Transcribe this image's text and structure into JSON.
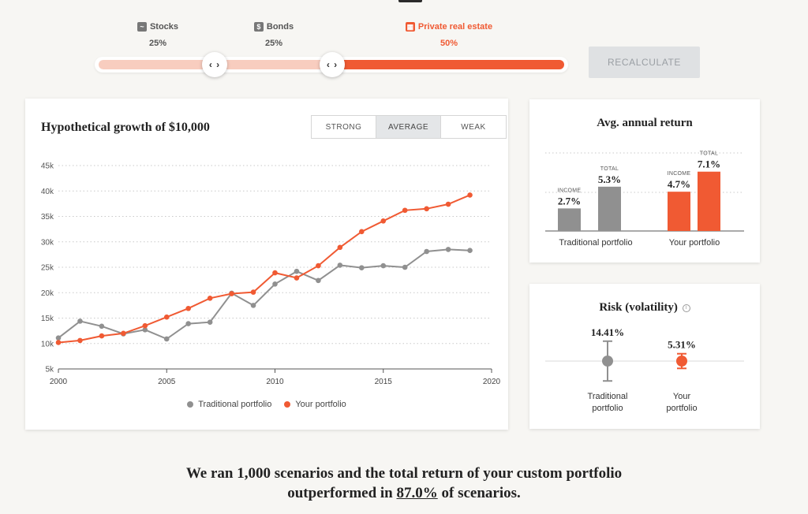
{
  "allocation": {
    "items": [
      {
        "name": "Stocks",
        "pct": "25%",
        "icon": "stocks-chart-icon"
      },
      {
        "name": "Bonds",
        "pct": "25%",
        "icon": "dollar-icon"
      },
      {
        "name": "Private real estate",
        "pct": "50%",
        "icon": "building-icon"
      }
    ],
    "handle_glyph": "‹ ›"
  },
  "recalculate_label": "RECALCULATE",
  "chart_card": {
    "title": "Hypothetical growth of $10,000",
    "tabs": [
      "STRONG",
      "AVERAGE",
      "WEAK"
    ],
    "active_tab": "AVERAGE"
  },
  "colors": {
    "traditional": "#909090",
    "yours": "#f05a33",
    "light_accent": "#f8cdbf"
  },
  "chart_data": {
    "type": "line",
    "title": "Hypothetical growth of $10,000",
    "xlabel": "",
    "ylabel": "",
    "xlim": [
      2000,
      2020
    ],
    "ylim": [
      5000,
      45000
    ],
    "x_ticks": [
      2000,
      2005,
      2010,
      2015,
      2020
    ],
    "y_ticks": [
      5000,
      10000,
      15000,
      20000,
      25000,
      30000,
      35000,
      40000,
      45000
    ],
    "y_tick_labels": [
      "5k",
      "10k",
      "15k",
      "20k",
      "25k",
      "30k",
      "35k",
      "40k",
      "45k"
    ],
    "grid": true,
    "legend_position": "bottom",
    "series": [
      {
        "name": "Traditional portfolio",
        "color": "#909090",
        "x": [
          2000,
          2001,
          2002,
          2003,
          2004,
          2005,
          2006,
          2007,
          2008,
          2009,
          2010,
          2011,
          2012,
          2013,
          2014,
          2015,
          2016,
          2017,
          2018,
          2019
        ],
        "values": [
          11100,
          14400,
          13400,
          11900,
          12700,
          10900,
          13900,
          14200,
          19900,
          17500,
          21700,
          24200,
          22400,
          25400,
          24900,
          25300,
          25000,
          28100,
          28500,
          28300
        ]
      },
      {
        "name": "Your portfolio",
        "color": "#f05a33",
        "x": [
          2000,
          2001,
          2002,
          2003,
          2004,
          2005,
          2006,
          2007,
          2008,
          2009,
          2010,
          2011,
          2012,
          2013,
          2014,
          2015,
          2016,
          2017,
          2018,
          2019
        ],
        "values": [
          10200,
          10600,
          11500,
          12000,
          13500,
          15200,
          16900,
          18900,
          19800,
          20100,
          23900,
          22900,
          25300,
          28900,
          32000,
          34100,
          36200,
          36500,
          37400,
          39200
        ]
      }
    ]
  },
  "avg_return": {
    "title": "Avg. annual return",
    "groups": [
      {
        "label": "Traditional portfolio",
        "income_label": "INCOME",
        "income": 2.7,
        "income_text": "2.7%",
        "total_label": "TOTAL",
        "total": 5.3,
        "total_text": "5.3%"
      },
      {
        "label": "Your portfolio",
        "income_label": "INCOME",
        "income": 4.7,
        "income_text": "4.7%",
        "total_label": "TOTAL",
        "total": 7.1,
        "total_text": "7.1%"
      }
    ]
  },
  "risk": {
    "title": "Risk (volatility)",
    "info_icon": "i",
    "items": [
      {
        "label_line1": "Traditional",
        "label_line2": "portfolio",
        "value_text": "14.41%"
      },
      {
        "label_line1": "Your",
        "label_line2": "portfolio",
        "value_text": "5.31%"
      }
    ]
  },
  "summary": {
    "prefix": "We ran 1,000 scenarios and the total return of your custom portfolio",
    "mid": "outperformed in ",
    "highlight": "87.0%",
    "suffix": " of scenarios."
  }
}
